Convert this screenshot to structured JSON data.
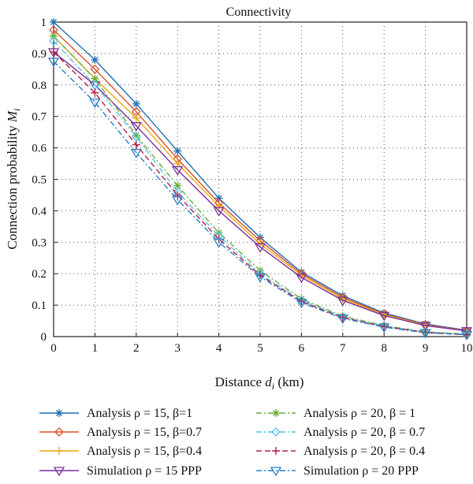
{
  "chart_data": {
    "type": "line",
    "title": "Connectivity",
    "xlabel": "Distance d_i (km)",
    "xlabel_main": "Distance ",
    "xlabel_var": "d",
    "xlabel_sub": "i",
    "xlabel_unit": " (km)",
    "ylabel": "Connection probability M_i",
    "ylabel_main": "Connection probability ",
    "ylabel_var": "M",
    "ylabel_sub": "i",
    "xlim": [
      0,
      10
    ],
    "ylim": [
      0,
      1
    ],
    "grid": true,
    "legend_position": "bottom",
    "x": [
      0,
      1,
      2,
      3,
      4,
      5,
      6,
      7,
      8,
      9,
      10
    ],
    "x_ticks": [
      "0",
      "1",
      "2",
      "3",
      "4",
      "5",
      "6",
      "7",
      "8",
      "9",
      "10"
    ],
    "y_ticks": [
      "0",
      "0.1",
      "0.2",
      "0.3",
      "0.4",
      "0.5",
      "0.6",
      "0.7",
      "0.8",
      "0.9",
      "1"
    ],
    "series": [
      {
        "name": "Analysis ρ = 15, β=1",
        "color": "#1f6fb5",
        "marker": "asterisk",
        "dash": "solid",
        "values": [
          1.0,
          0.88,
          0.74,
          0.59,
          0.44,
          0.315,
          0.205,
          0.13,
          0.075,
          0.04,
          0.02
        ]
      },
      {
        "name": "Analysis ρ = 15, β=0.7",
        "color": "#d9532c",
        "marker": "diamond",
        "dash": "solid",
        "values": [
          0.975,
          0.85,
          0.715,
          0.565,
          0.425,
          0.305,
          0.2,
          0.125,
          0.072,
          0.038,
          0.019
        ]
      },
      {
        "name": "Analysis ρ = 15, β=0.4",
        "color": "#e8a915",
        "marker": "plus",
        "dash": "solid",
        "values": [
          0.955,
          0.82,
          0.695,
          0.55,
          0.415,
          0.295,
          0.195,
          0.12,
          0.07,
          0.036,
          0.018
        ]
      },
      {
        "name": "Simulation ρ = 15 PPP",
        "color": "#7a2f9e",
        "marker": "triangle-down",
        "dash": "solid",
        "values": [
          0.905,
          0.8,
          0.67,
          0.53,
          0.4,
          0.285,
          0.188,
          0.115,
          0.067,
          0.035,
          0.018
        ]
      },
      {
        "name": "Analysis ρ = 20, β = 1",
        "color": "#6aab3a",
        "marker": "asterisk",
        "dash": "dashdot",
        "values": [
          0.955,
          0.82,
          0.64,
          0.48,
          0.33,
          0.21,
          0.12,
          0.065,
          0.035,
          0.015,
          0.008
        ]
      },
      {
        "name": "Analysis ρ = 20, β = 0.7",
        "color": "#59c3e6",
        "marker": "diamond",
        "dash": "dashdot",
        "values": [
          0.94,
          0.8,
          0.635,
          0.46,
          0.32,
          0.2,
          0.115,
          0.062,
          0.033,
          0.014,
          0.007
        ]
      },
      {
        "name": "Analysis ρ = 20, β = 0.4",
        "color": "#b5204a",
        "marker": "plus",
        "dash": "dashed",
        "values": [
          0.905,
          0.775,
          0.61,
          0.45,
          0.31,
          0.195,
          0.112,
          0.06,
          0.032,
          0.013,
          0.006
        ]
      },
      {
        "name": "Simulation ρ = 20 PPP",
        "color": "#2a7fc4",
        "marker": "triangle-down",
        "dash": "dashdot",
        "values": [
          0.875,
          0.745,
          0.585,
          0.435,
          0.3,
          0.19,
          0.108,
          0.058,
          0.03,
          0.012,
          0.006
        ]
      }
    ]
  }
}
